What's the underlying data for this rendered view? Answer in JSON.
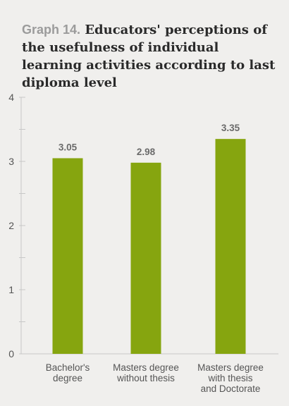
{
  "title": {
    "label": "Graph 14.",
    "text": "Educators' perceptions of the usefulness of individual learning activities according to last diploma level"
  },
  "chart_data": {
    "type": "bar",
    "categories": [
      [
        "Bachelor's",
        "degree"
      ],
      [
        "Masters degree",
        "without thesis"
      ],
      [
        "Masters degree",
        "with thesis",
        "and Doctorate"
      ]
    ],
    "values": [
      3.05,
      2.98,
      3.35
    ],
    "data_labels": [
      "3.05",
      "2.98",
      "3.35"
    ],
    "ylim": [
      0,
      4
    ],
    "yticks": [
      "0",
      "1",
      "2",
      "3",
      "4"
    ],
    "bar_color": "#86a50f",
    "axis_color": "#c7c7c7",
    "grid": false
  }
}
